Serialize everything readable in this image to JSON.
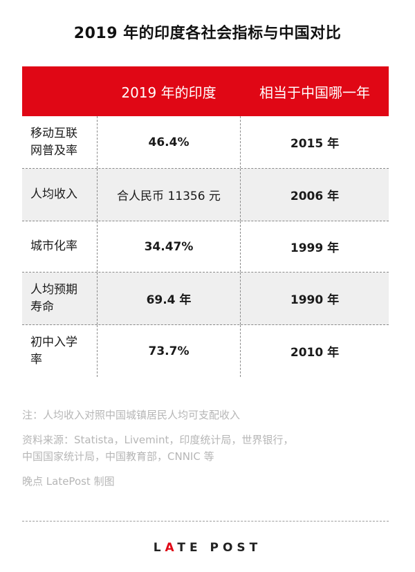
{
  "title": "2019 年的印度各社会指标与中国对比",
  "table": {
    "headers": [
      "",
      "2019 年的印度",
      "相当于中国哪一年"
    ],
    "rows": [
      {
        "indicator": [
          "移动互联",
          "网普及率"
        ],
        "india": "46.4%",
        "china": "2015 年"
      },
      {
        "indicator": [
          "人均收入"
        ],
        "india": "合人民币 11356 元",
        "china": "2006 年"
      },
      {
        "indicator": [
          "城市化率"
        ],
        "india": "34.47%",
        "china": "1999 年"
      },
      {
        "indicator": [
          "人均预期",
          "寿命"
        ],
        "india": "69.4 年",
        "china": "1990 年"
      },
      {
        "indicator": [
          "初中入学",
          "率"
        ],
        "india": "73.7%",
        "china": "2010 年"
      }
    ]
  },
  "notes": {
    "note": "注：人均收入对照中国城镇居民人均可支配收入",
    "sources_line1": "资料来源：Statista，Livemint，印度统计局，世界银行，",
    "sources_line2": "中国国家统计局，中国教育部，CNNIC 等",
    "credit": "晚点 LatePost 制图"
  },
  "logo": {
    "part1": "L",
    "dot": "A",
    "part2": "TE POST"
  },
  "colors": {
    "header_bg": "#e00715",
    "row_shade": "#efefef",
    "note_text": "#b6b6b6"
  }
}
